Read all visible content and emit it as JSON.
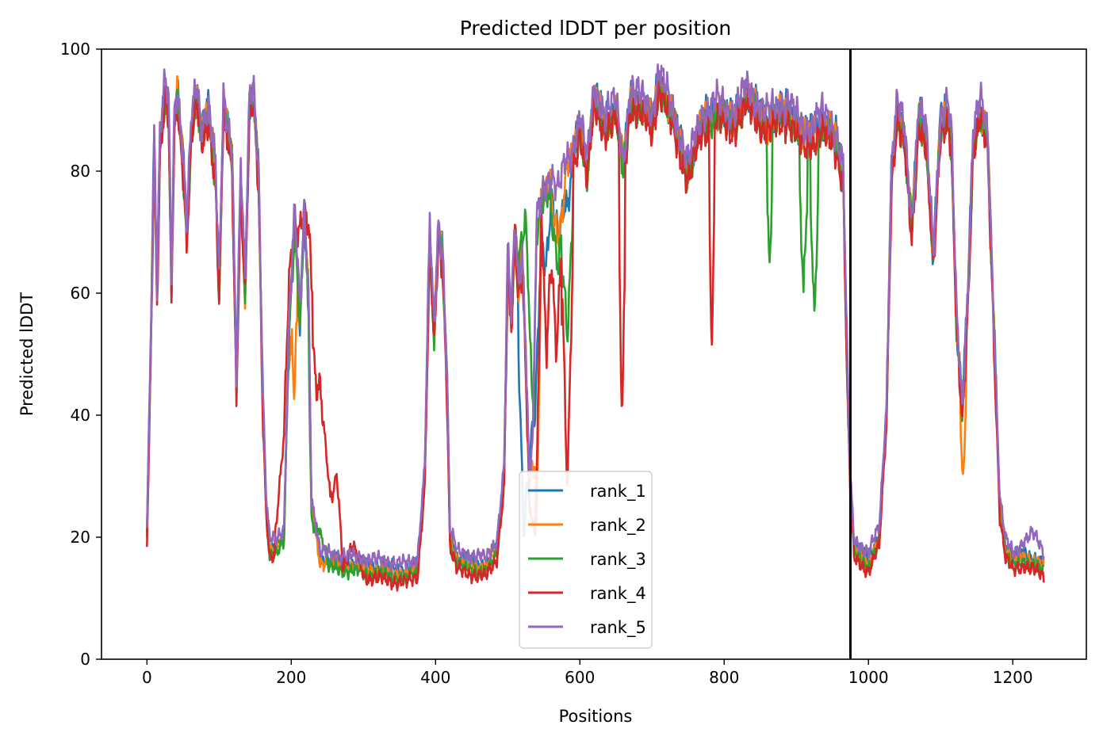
{
  "chart_data": {
    "type": "line",
    "title": "Predicted lDDT per position",
    "xlabel": "Positions",
    "ylabel": "Predicted lDDT",
    "xlim": [
      -63,
      1302
    ],
    "ylim": [
      0,
      100
    ],
    "xticks": [
      0,
      200,
      400,
      600,
      800,
      1000,
      1200
    ],
    "yticks": [
      0,
      20,
      40,
      60,
      80,
      100
    ],
    "grid": false,
    "legend_position": "lower center",
    "vertical_line": {
      "x": 975,
      "color": "#000000"
    },
    "series": [
      {
        "name": "rank_1",
        "color": "#1f77b4",
        "offset": 0.6,
        "phase": 0.0,
        "overrides": [
          [
            515,
            530,
            18
          ],
          [
            530,
            545,
            40
          ],
          [
            545,
            560,
            62
          ],
          [
            560,
            580,
            70
          ],
          [
            575,
            590,
            73
          ]
        ]
      },
      {
        "name": "rank_2",
        "color": "#ff7f0e",
        "offset": 0.0,
        "phase": 1.3,
        "overrides": [
          [
            195,
            200,
            50
          ],
          [
            200,
            208,
            44
          ],
          [
            535,
            545,
            22
          ],
          [
            560,
            580,
            70
          ],
          [
            1128,
            1135,
            29
          ]
        ]
      },
      {
        "name": "rank_3",
        "color": "#2ca02c",
        "offset": -0.8,
        "phase": 2.1,
        "overrides": [
          [
            515,
            535,
            74
          ],
          [
            560,
            580,
            66
          ],
          [
            575,
            590,
            52
          ],
          [
            860,
            866,
            64
          ],
          [
            905,
            915,
            60
          ],
          [
            920,
            930,
            57
          ],
          [
            225,
            250,
            23
          ]
        ]
      },
      {
        "name": "rank_4",
        "color": "#d62728",
        "offset": -1.5,
        "phase": 3.4,
        "overrides": [
          [
            178,
            260,
            74
          ],
          [
            230,
            240,
            46
          ],
          [
            255,
            270,
            33
          ],
          [
            270,
            300,
            20
          ],
          [
            530,
            545,
            20
          ],
          [
            548,
            560,
            52
          ],
          [
            560,
            575,
            52
          ],
          [
            575,
            590,
            28
          ],
          [
            655,
            662,
            40
          ],
          [
            780,
            786,
            53
          ]
        ]
      },
      {
        "name": "rank_5",
        "color": "#9467bd",
        "offset": 1.6,
        "phase": 4.7,
        "overrides": [
          [
            1210,
            1245,
            19
          ]
        ]
      }
    ],
    "profile": [
      [
        0,
        20
      ],
      [
        6,
        55
      ],
      [
        10,
        85
      ],
      [
        14,
        60
      ],
      [
        18,
        85
      ],
      [
        25,
        93
      ],
      [
        30,
        90
      ],
      [
        34,
        60
      ],
      [
        38,
        88
      ],
      [
        42,
        92
      ],
      [
        50,
        82
      ],
      [
        55,
        70
      ],
      [
        62,
        88
      ],
      [
        70,
        92
      ],
      [
        75,
        85
      ],
      [
        85,
        90
      ],
      [
        95,
        80
      ],
      [
        100,
        60
      ],
      [
        106,
        90
      ],
      [
        118,
        82
      ],
      [
        124,
        45
      ],
      [
        130,
        80
      ],
      [
        136,
        60
      ],
      [
        142,
        90
      ],
      [
        148,
        92
      ],
      [
        155,
        78
      ],
      [
        160,
        45
      ],
      [
        165,
        26
      ],
      [
        170,
        18
      ],
      [
        180,
        18
      ],
      [
        190,
        20
      ],
      [
        197,
        55
      ],
      [
        205,
        72
      ],
      [
        212,
        55
      ],
      [
        218,
        72
      ],
      [
        224,
        58
      ],
      [
        228,
        25
      ],
      [
        240,
        16
      ],
      [
        300,
        15
      ],
      [
        360,
        14
      ],
      [
        375,
        15
      ],
      [
        385,
        30
      ],
      [
        392,
        70
      ],
      [
        398,
        52
      ],
      [
        404,
        70
      ],
      [
        410,
        65
      ],
      [
        416,
        45
      ],
      [
        420,
        20
      ],
      [
        430,
        16
      ],
      [
        470,
        15
      ],
      [
        485,
        18
      ],
      [
        495,
        30
      ],
      [
        500,
        65
      ],
      [
        505,
        55
      ],
      [
        510,
        70
      ],
      [
        515,
        60
      ],
      [
        520,
        66
      ],
      [
        525,
        50
      ],
      [
        530,
        28
      ],
      [
        535,
        35
      ],
      [
        540,
        70
      ],
      [
        550,
        76
      ],
      [
        560,
        78
      ],
      [
        570,
        75
      ],
      [
        580,
        80
      ],
      [
        590,
        82
      ],
      [
        600,
        88
      ],
      [
        610,
        80
      ],
      [
        620,
        92
      ],
      [
        635,
        88
      ],
      [
        650,
        90
      ],
      [
        660,
        80
      ],
      [
        670,
        92
      ],
      [
        690,
        90
      ],
      [
        700,
        88
      ],
      [
        710,
        95
      ],
      [
        730,
        88
      ],
      [
        750,
        80
      ],
      [
        770,
        88
      ],
      [
        790,
        90
      ],
      [
        810,
        88
      ],
      [
        830,
        92
      ],
      [
        860,
        88
      ],
      [
        890,
        90
      ],
      [
        910,
        85
      ],
      [
        935,
        88
      ],
      [
        955,
        85
      ],
      [
        965,
        80
      ],
      [
        970,
        50
      ],
      [
        975,
        28
      ],
      [
        980,
        18
      ],
      [
        1000,
        16
      ],
      [
        1015,
        20
      ],
      [
        1025,
        40
      ],
      [
        1032,
        80
      ],
      [
        1040,
        90
      ],
      [
        1050,
        85
      ],
      [
        1060,
        70
      ],
      [
        1070,
        90
      ],
      [
        1080,
        85
      ],
      [
        1090,
        65
      ],
      [
        1100,
        88
      ],
      [
        1110,
        90
      ],
      [
        1115,
        85
      ],
      [
        1122,
        55
      ],
      [
        1130,
        40
      ],
      [
        1138,
        60
      ],
      [
        1145,
        85
      ],
      [
        1155,
        90
      ],
      [
        1165,
        85
      ],
      [
        1175,
        50
      ],
      [
        1182,
        25
      ],
      [
        1190,
        18
      ],
      [
        1200,
        16
      ],
      [
        1215,
        17
      ],
      [
        1230,
        16
      ],
      [
        1243,
        15
      ]
    ]
  }
}
